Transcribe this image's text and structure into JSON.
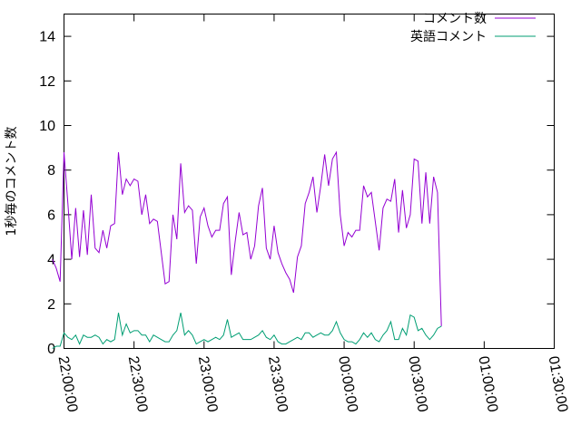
{
  "chart_data": {
    "type": "line",
    "title": "",
    "xlabel": "",
    "ylabel": "1秒毎のコメント数",
    "xlim": [
      "22:00:00",
      "01:30:00"
    ],
    "ylim": [
      0,
      15
    ],
    "x_ticks": [
      "22:00:00",
      "22:30:00",
      "23:00:00",
      "23:30:00",
      "00:00:00",
      "00:30:00",
      "01:00:00",
      "01:30:00"
    ],
    "y_ticks": [
      "0",
      "2",
      "4",
      "6",
      "8",
      "10",
      "12",
      "14"
    ],
    "grid": false,
    "legend_position": "top-right",
    "x_start": "21:55:00",
    "x_step_seconds": 100,
    "series": [
      {
        "name": "コメント数",
        "color": "#9400d3",
        "values": [
          4.0,
          3.6,
          3.0,
          8.8,
          6.5,
          4.0,
          6.3,
          4.1,
          6.2,
          4.2,
          6.9,
          4.5,
          4.3,
          5.3,
          4.5,
          5.5,
          5.6,
          8.8,
          6.9,
          7.6,
          7.3,
          7.6,
          7.5,
          6.0,
          6.9,
          5.6,
          5.8,
          5.7,
          4.3,
          2.9,
          3.0,
          6.0,
          4.9,
          8.3,
          6.1,
          6.4,
          6.2,
          3.8,
          5.9,
          6.3,
          5.5,
          5.0,
          5.3,
          5.3,
          6.5,
          6.8,
          3.3,
          4.8,
          6.1,
          5.1,
          5.2,
          4.0,
          4.6,
          6.4,
          7.2,
          4.5,
          4.0,
          5.5,
          4.3,
          3.8,
          3.4,
          3.1,
          2.5,
          4.1,
          4.6,
          6.5,
          7.0,
          7.7,
          6.1,
          7.3,
          8.7,
          7.3,
          8.5,
          8.8,
          6.0,
          4.6,
          5.2,
          5.0,
          5.3,
          5.3,
          7.3,
          6.8,
          7.0,
          5.7,
          4.4,
          6.3,
          6.7,
          6.6,
          7.6,
          5.2,
          7.1,
          5.4,
          6.0,
          8.5,
          8.4,
          5.6,
          7.9,
          5.6,
          7.7,
          7.0,
          1.0
        ]
      },
      {
        "name": "英語コメント",
        "color": "#009e73",
        "values": [
          0.0,
          0.1,
          0.1,
          0.7,
          0.5,
          0.4,
          0.6,
          0.2,
          0.6,
          0.5,
          0.5,
          0.6,
          0.5,
          0.2,
          0.4,
          0.3,
          0.4,
          1.6,
          0.6,
          1.1,
          0.7,
          0.8,
          0.8,
          0.6,
          0.6,
          0.3,
          0.6,
          0.5,
          0.4,
          0.3,
          0.3,
          0.6,
          0.8,
          1.6,
          0.6,
          0.8,
          0.6,
          0.2,
          0.3,
          0.4,
          0.3,
          0.4,
          0.5,
          0.4,
          0.6,
          1.3,
          0.5,
          0.6,
          0.7,
          0.4,
          0.4,
          0.4,
          0.5,
          0.6,
          0.8,
          0.5,
          0.4,
          0.6,
          0.3,
          0.2,
          0.2,
          0.3,
          0.4,
          0.5,
          0.4,
          0.7,
          0.7,
          0.5,
          0.6,
          0.7,
          0.6,
          0.6,
          0.8,
          1.2,
          0.7,
          0.4,
          0.3,
          0.3,
          0.2,
          0.4,
          0.7,
          0.5,
          0.7,
          0.4,
          0.3,
          0.6,
          0.8,
          1.2,
          0.4,
          0.4,
          0.9,
          0.6,
          1.5,
          1.4,
          0.8,
          0.9,
          0.6,
          0.4,
          0.6,
          0.9,
          1.0
        ]
      }
    ]
  }
}
